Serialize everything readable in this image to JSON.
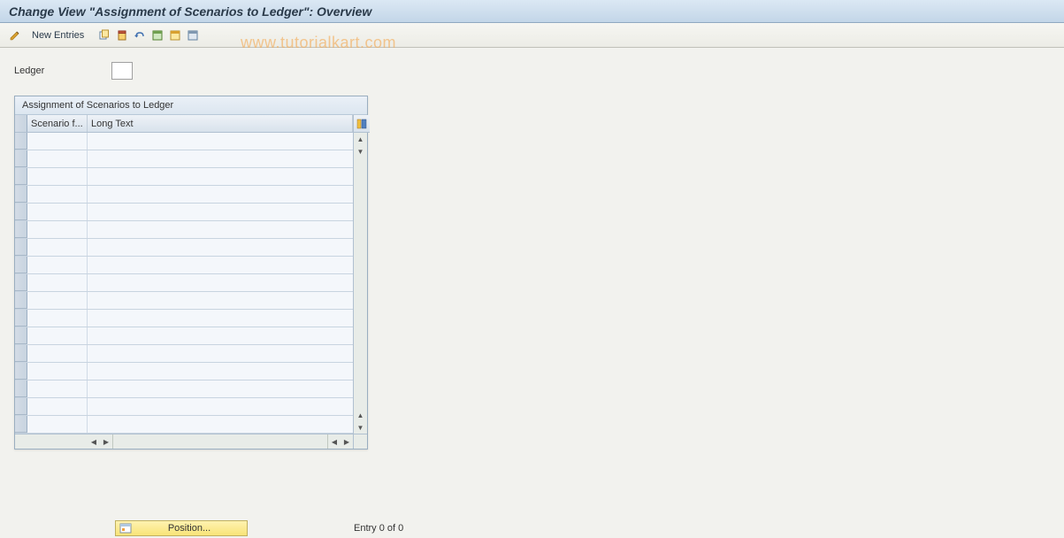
{
  "title": "Change View \"Assignment of Scenarios to Ledger\": Overview",
  "toolbar": {
    "new_entries_label": "New Entries"
  },
  "watermark": "www.tutorialkart.com",
  "ledger": {
    "label": "Ledger",
    "value": ""
  },
  "table": {
    "title": "Assignment of Scenarios to Ledger",
    "columns": {
      "scenario": "Scenario f...",
      "long_text": "Long Text"
    },
    "row_count": 17,
    "colors": {
      "border": "#9aaec0",
      "header_bg_top": "#eef2f7",
      "header_bg_bottom": "#d8e2ec",
      "row_bg": "#f4f7fb",
      "row_border": "#c8d4e0"
    }
  },
  "footer": {
    "position_label": "Position...",
    "entry_text": "Entry 0 of 0"
  },
  "colors": {
    "title_bg_top": "#dbe8f4",
    "title_bg_bottom": "#c3d6e8",
    "body_bg": "#f2f2ee",
    "watermark": "#f4a850"
  }
}
